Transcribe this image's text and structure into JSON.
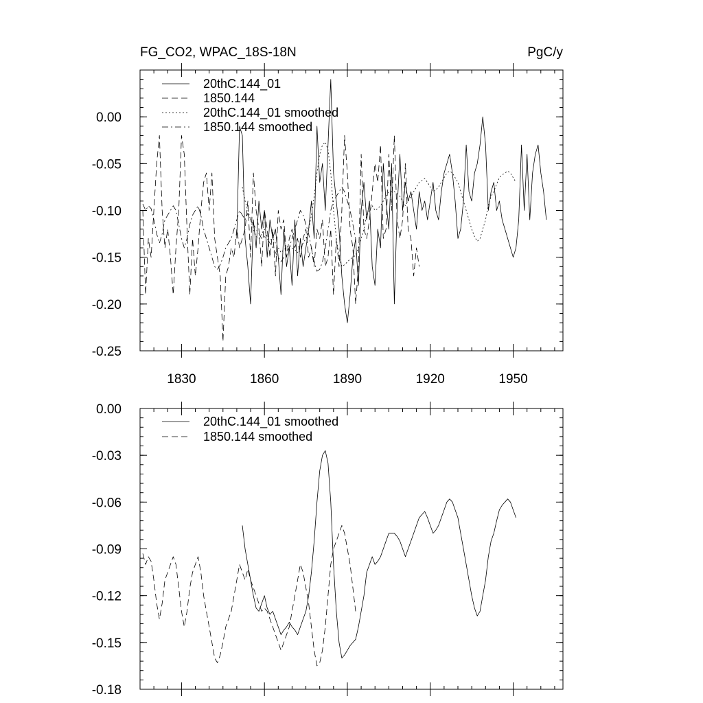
{
  "chart_data": [
    {
      "type": "line",
      "title": "FG_CO2, WPAC_18S-18N",
      "units": "PgC/y",
      "xlim": [
        1815,
        1968
      ],
      "ylim": [
        -0.25,
        0.05
      ],
      "xticks": [
        1830,
        1860,
        1890,
        1920,
        1950
      ],
      "yticks": [
        0.0,
        -0.05,
        -0.1,
        -0.15,
        -0.2,
        -0.25
      ],
      "ytick_labels": [
        "0.00",
        "-0.05",
        "-0.10",
        "-0.15",
        "-0.20",
        "-0.25"
      ],
      "legend": [
        {
          "name": "20thC.144_01",
          "style": "solid"
        },
        {
          "name": "1850.144",
          "style": "dashed"
        },
        {
          "name": "20thC.144_01 smoothed",
          "style": "dotted"
        },
        {
          "name": "1850.144 smoothed",
          "style": "dashdot"
        }
      ],
      "series": [
        {
          "name": "20thC.144_01",
          "style": "solid",
          "x_start": 1850,
          "values": [
            -0.13,
            -0.01,
            -0.02,
            -0.13,
            -0.16,
            -0.2,
            -0.11,
            -0.14,
            -0.09,
            -0.12,
            -0.1,
            -0.15,
            -0.11,
            -0.13,
            -0.12,
            -0.15,
            -0.19,
            -0.12,
            -0.16,
            -0.14,
            -0.18,
            -0.11,
            -0.17,
            -0.13,
            -0.16,
            -0.14,
            -0.12,
            -0.09,
            -0.13,
            -0.01,
            -0.07,
            -0.05,
            -0.1,
            -0.03,
            0.04,
            -0.06,
            -0.09,
            -0.12,
            -0.17,
            -0.2,
            -0.22,
            -0.19,
            -0.15,
            -0.13,
            -0.18,
            -0.1,
            -0.07,
            -0.11,
            -0.09,
            -0.16,
            -0.18,
            -0.12,
            -0.14,
            -0.05,
            -0.09,
            -0.12,
            -0.05,
            -0.2,
            -0.1,
            -0.04,
            -0.1,
            -0.07,
            -0.09,
            -0.08,
            -0.1,
            -0.12,
            -0.08,
            -0.1,
            -0.09,
            -0.11,
            -0.09,
            -0.07,
            -0.1,
            -0.11,
            -0.08,
            -0.06,
            -0.05,
            -0.04,
            -0.06,
            -0.09,
            -0.13,
            -0.12,
            -0.09,
            -0.03,
            -0.08,
            -0.09,
            -0.06,
            -0.05,
            -0.03,
            0.0,
            -0.03,
            -0.1,
            -0.08,
            -0.07,
            -0.1,
            -0.09,
            -0.11,
            -0.12,
            -0.13,
            -0.14,
            -0.15,
            -0.14,
            -0.11,
            -0.03,
            -0.1,
            -0.04,
            -0.11,
            -0.06,
            -0.04,
            -0.03,
            -0.06,
            -0.08,
            -0.11
          ]
        },
        {
          "name": "1850.144",
          "style": "dashed",
          "x_start": 1816,
          "values": [
            -0.1,
            -0.19,
            -0.13,
            -0.15,
            -0.1,
            -0.05,
            -0.02,
            -0.1,
            -0.14,
            -0.12,
            -0.15,
            -0.19,
            -0.14,
            -0.1,
            -0.02,
            -0.04,
            -0.12,
            -0.19,
            -0.13,
            -0.17,
            -0.14,
            -0.1,
            -0.07,
            -0.06,
            -0.1,
            -0.06,
            -0.13,
            -0.15,
            -0.17,
            -0.24,
            -0.17,
            -0.16,
            -0.14,
            -0.15,
            -0.12,
            -0.14,
            -0.13,
            -0.12,
            -0.09,
            -0.15,
            -0.06,
            -0.1,
            -0.12,
            -0.16,
            -0.1,
            -0.12,
            -0.15,
            -0.12,
            -0.17,
            -0.1,
            -0.12,
            -0.11,
            -0.15,
            -0.13,
            -0.12,
            -0.14,
            -0.13,
            -0.15,
            -0.13,
            -0.12,
            -0.15,
            -0.14,
            -0.16,
            -0.12,
            -0.13,
            -0.11,
            -0.16,
            -0.15,
            -0.12,
            -0.19,
            -0.13,
            -0.16,
            -0.1,
            -0.02,
            -0.06,
            -0.12,
            -0.14,
            -0.2,
            -0.16,
            -0.04,
            -0.12,
            -0.13,
            -0.11,
            -0.08,
            -0.05,
            -0.07,
            -0.03,
            -0.13,
            -0.12,
            -0.04,
            -0.1,
            -0.02,
            -0.11,
            -0.13,
            -0.11,
            -0.05,
            -0.12,
            -0.13,
            -0.17,
            -0.14,
            -0.16
          ]
        },
        {
          "name": "20thC.144_01 smoothed",
          "style": "dotted",
          "x_start": 1852,
          "values": [
            -0.075,
            -0.09,
            -0.1,
            -0.11,
            -0.12,
            -0.128,
            -0.13,
            -0.125,
            -0.12,
            -0.128,
            -0.132,
            -0.13,
            -0.135,
            -0.14,
            -0.145,
            -0.142,
            -0.14,
            -0.137,
            -0.14,
            -0.142,
            -0.145,
            -0.14,
            -0.135,
            -0.13,
            -0.12,
            -0.105,
            -0.085,
            -0.06,
            -0.04,
            -0.03,
            -0.027,
            -0.035,
            -0.06,
            -0.1,
            -0.13,
            -0.15,
            -0.16,
            -0.158,
            -0.155,
            -0.152,
            -0.15,
            -0.148,
            -0.14,
            -0.13,
            -0.12,
            -0.105,
            -0.1,
            -0.095,
            -0.1,
            -0.098,
            -0.095,
            -0.09,
            -0.085,
            -0.08,
            -0.08,
            -0.08,
            -0.082,
            -0.085,
            -0.09,
            -0.095,
            -0.09,
            -0.085,
            -0.08,
            -0.075,
            -0.07,
            -0.068,
            -0.066,
            -0.07,
            -0.075,
            -0.08,
            -0.078,
            -0.075,
            -0.07,
            -0.065,
            -0.06,
            -0.058,
            -0.06,
            -0.065,
            -0.07,
            -0.08,
            -0.09,
            -0.1,
            -0.11,
            -0.12,
            -0.128,
            -0.133,
            -0.13,
            -0.12,
            -0.11,
            -0.095,
            -0.085,
            -0.08,
            -0.072,
            -0.065,
            -0.062,
            -0.06,
            -0.058,
            -0.06,
            -0.065,
            -0.07
          ]
        },
        {
          "name": "1850.144 smoothed",
          "style": "dashdot",
          "x_start": 1816,
          "values": [
            -0.093,
            -0.1,
            -0.095,
            -0.098,
            -0.11,
            -0.125,
            -0.135,
            -0.125,
            -0.11,
            -0.105,
            -0.1,
            -0.095,
            -0.1,
            -0.115,
            -0.13,
            -0.14,
            -0.13,
            -0.115,
            -0.105,
            -0.1,
            -0.095,
            -0.105,
            -0.12,
            -0.13,
            -0.14,
            -0.15,
            -0.16,
            -0.163,
            -0.158,
            -0.15,
            -0.14,
            -0.135,
            -0.13,
            -0.12,
            -0.11,
            -0.1,
            -0.105,
            -0.11,
            -0.103,
            -0.11,
            -0.115,
            -0.12,
            -0.125,
            -0.13,
            -0.128,
            -0.13,
            -0.135,
            -0.14,
            -0.145,
            -0.15,
            -0.155,
            -0.15,
            -0.145,
            -0.14,
            -0.13,
            -0.12,
            -0.11,
            -0.1,
            -0.105,
            -0.115,
            -0.125,
            -0.14,
            -0.155,
            -0.165,
            -0.163,
            -0.155,
            -0.14,
            -0.12,
            -0.1,
            -0.09,
            -0.085,
            -0.08,
            -0.075,
            -0.08,
            -0.09,
            -0.1,
            -0.115,
            -0.13
          ]
        }
      ]
    },
    {
      "type": "line",
      "title": "",
      "xlim": [
        1815,
        1968
      ],
      "ylim": [
        -0.18,
        0.0
      ],
      "xticks": [
        1830,
        1860,
        1890,
        1920,
        1950
      ],
      "yticks": [
        0.0,
        -0.03,
        -0.06,
        -0.09,
        -0.12,
        -0.15,
        -0.18
      ],
      "ytick_labels": [
        "0.00",
        "-0.03",
        "-0.06",
        "-0.09",
        "-0.12",
        "-0.15",
        "-0.18"
      ],
      "legend": [
        {
          "name": "20thC.144_01 smoothed",
          "style": "solid"
        },
        {
          "name": "1850.144 smoothed",
          "style": "dashed"
        }
      ],
      "series": [
        {
          "name": "20thC.144_01 smoothed",
          "style": "solid",
          "x_start": 1852,
          "values": [
            -0.075,
            -0.09,
            -0.1,
            -0.11,
            -0.12,
            -0.128,
            -0.13,
            -0.125,
            -0.12,
            -0.128,
            -0.132,
            -0.13,
            -0.135,
            -0.14,
            -0.145,
            -0.142,
            -0.14,
            -0.137,
            -0.14,
            -0.142,
            -0.145,
            -0.14,
            -0.135,
            -0.13,
            -0.12,
            -0.105,
            -0.085,
            -0.06,
            -0.04,
            -0.03,
            -0.027,
            -0.035,
            -0.06,
            -0.1,
            -0.13,
            -0.15,
            -0.16,
            -0.158,
            -0.155,
            -0.152,
            -0.15,
            -0.148,
            -0.14,
            -0.13,
            -0.12,
            -0.105,
            -0.1,
            -0.095,
            -0.1,
            -0.098,
            -0.095,
            -0.09,
            -0.085,
            -0.08,
            -0.08,
            -0.08,
            -0.082,
            -0.085,
            -0.09,
            -0.095,
            -0.09,
            -0.085,
            -0.08,
            -0.075,
            -0.07,
            -0.068,
            -0.066,
            -0.07,
            -0.075,
            -0.08,
            -0.078,
            -0.075,
            -0.07,
            -0.065,
            -0.06,
            -0.058,
            -0.06,
            -0.065,
            -0.07,
            -0.08,
            -0.09,
            -0.1,
            -0.11,
            -0.12,
            -0.128,
            -0.133,
            -0.13,
            -0.12,
            -0.11,
            -0.095,
            -0.085,
            -0.08,
            -0.072,
            -0.065,
            -0.062,
            -0.06,
            -0.058,
            -0.06,
            -0.065,
            -0.07
          ]
        },
        {
          "name": "1850.144 smoothed",
          "style": "dashed",
          "x_start": 1816,
          "values": [
            -0.093,
            -0.1,
            -0.095,
            -0.098,
            -0.11,
            -0.125,
            -0.135,
            -0.125,
            -0.11,
            -0.105,
            -0.1,
            -0.095,
            -0.1,
            -0.115,
            -0.13,
            -0.14,
            -0.13,
            -0.115,
            -0.105,
            -0.1,
            -0.095,
            -0.105,
            -0.12,
            -0.13,
            -0.14,
            -0.15,
            -0.16,
            -0.163,
            -0.158,
            -0.15,
            -0.14,
            -0.135,
            -0.13,
            -0.12,
            -0.11,
            -0.1,
            -0.105,
            -0.11,
            -0.103,
            -0.11,
            -0.115,
            -0.12,
            -0.125,
            -0.13,
            -0.128,
            -0.13,
            -0.135,
            -0.14,
            -0.145,
            -0.15,
            -0.155,
            -0.15,
            -0.145,
            -0.14,
            -0.13,
            -0.12,
            -0.11,
            -0.1,
            -0.105,
            -0.115,
            -0.125,
            -0.14,
            -0.155,
            -0.165,
            -0.163,
            -0.155,
            -0.14,
            -0.12,
            -0.1,
            -0.09,
            -0.085,
            -0.08,
            -0.075,
            -0.08,
            -0.09,
            -0.1,
            -0.115,
            -0.13
          ]
        }
      ]
    }
  ]
}
